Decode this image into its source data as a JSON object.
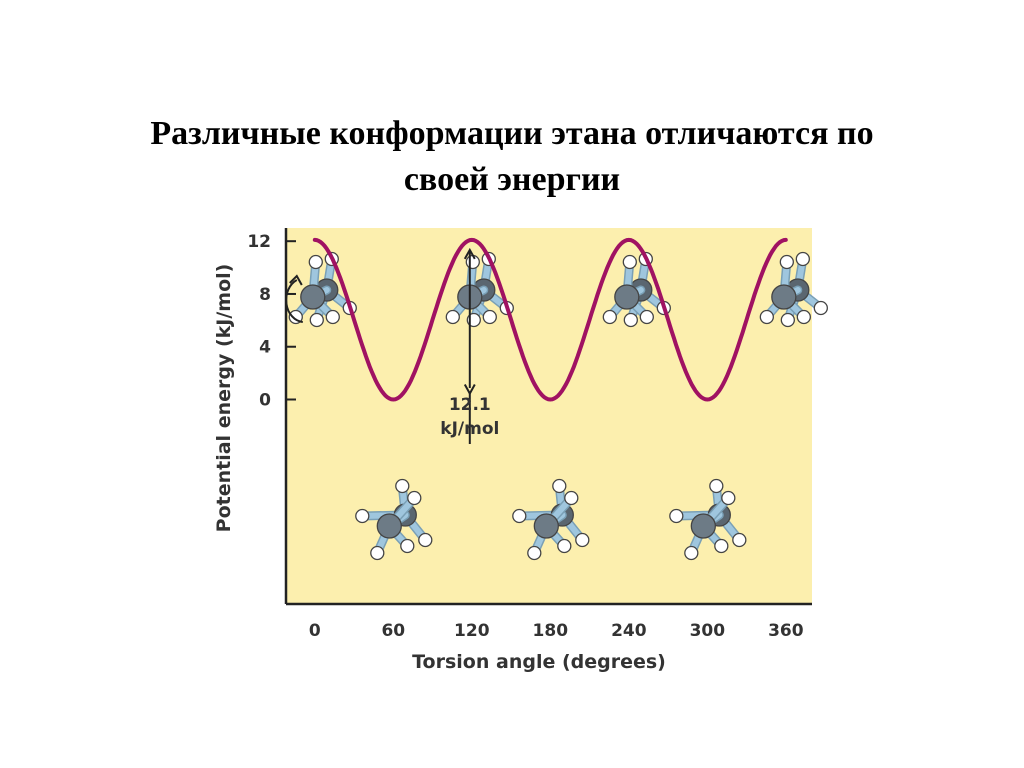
{
  "slide": {
    "title_line1": "Различные конформации этана отличаются по",
    "title_line2": "своей энергии"
  },
  "colors": {
    "plot_background": "#fcefae",
    "curve": "#a01262",
    "axis": "#222222",
    "carbon_atom": "#6d7b86",
    "bond": "#9fc6de",
    "hydrogen_atom": "#ffffff"
  },
  "chart_data": {
    "type": "line",
    "xlabel": "Torsion angle (degrees)",
    "ylabel": "Potential energy (kJ/mol)",
    "x_ticks": [
      0,
      60,
      120,
      180,
      240,
      300,
      360
    ],
    "y_ticks": [
      0,
      4,
      8,
      12
    ],
    "xlim": [
      -22,
      380
    ],
    "ylim": [
      -15.5,
      13
    ],
    "grid": false,
    "series": [
      {
        "x": [
          0,
          15,
          30,
          45,
          60,
          75,
          90,
          105,
          120,
          135,
          150,
          165,
          180,
          195,
          210,
          225,
          240,
          255,
          270,
          285,
          300,
          315,
          330,
          345,
          360
        ],
        "y": [
          12.1,
          10.3,
          6.05,
          1.77,
          0,
          1.77,
          6.05,
          10.3,
          12.1,
          10.3,
          6.05,
          1.77,
          0,
          1.77,
          6.05,
          10.3,
          12.1,
          10.3,
          6.05,
          1.77,
          0,
          1.77,
          6.05,
          10.3,
          12.1
        ]
      }
    ],
    "annotations": [
      {
        "at_x": 120,
        "from": 0,
        "to": 12.1,
        "text": [
          "12.1",
          "kJ/mol"
        ]
      }
    ],
    "molecule_icons": [
      {
        "name": "eclipsed-conformation",
        "at_x": [
          0,
          120,
          240,
          360
        ],
        "position": "above-curve"
      },
      {
        "name": "staggered-conformation",
        "at_x": [
          60,
          180,
          300
        ],
        "position": "below-curve"
      }
    ],
    "rotation_arrow_at_x": 0
  }
}
